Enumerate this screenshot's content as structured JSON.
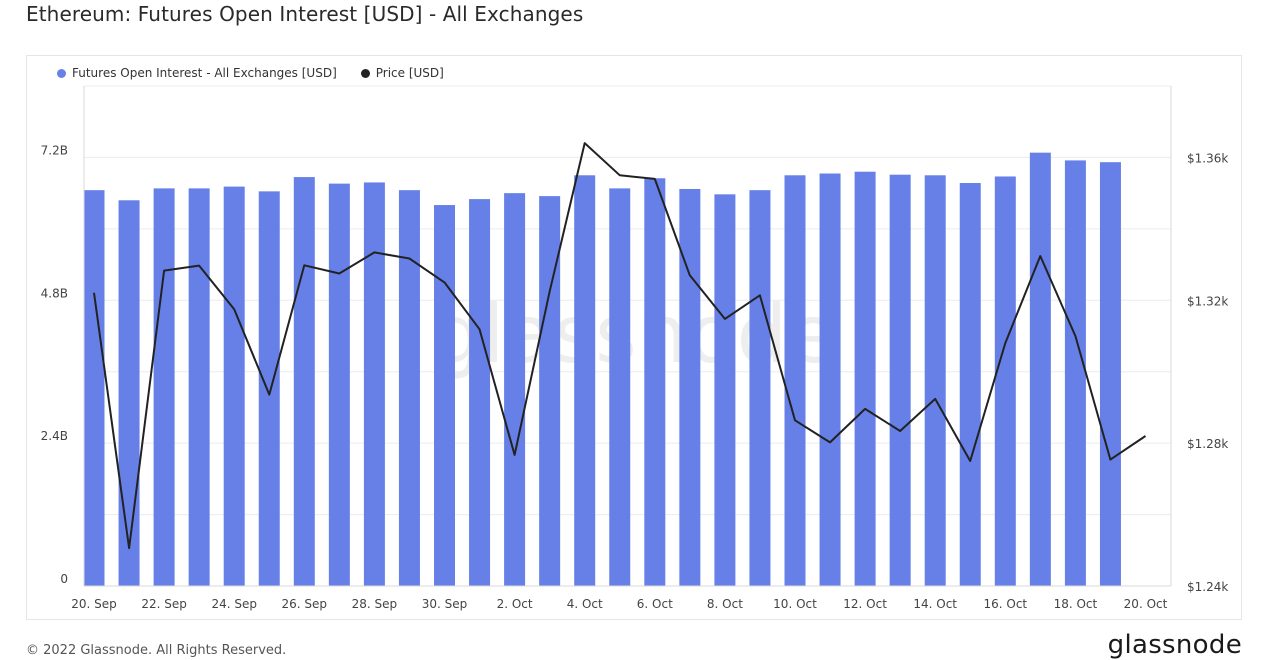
{
  "title": "Ethereum: Futures Open Interest [USD] - All Exchanges",
  "footer": "© 2022 Glassnode. All Rights Reserved.",
  "brand": "glassnode",
  "watermark": "glassnode",
  "legend": [
    {
      "label": "Futures Open Interest - All Exchanges [USD]",
      "color": "#6680e8"
    },
    {
      "label": "Price [USD]",
      "color": "#222222"
    }
  ],
  "chart_data": {
    "type": "bar",
    "title": "Ethereum: Futures Open Interest [USD] - All Exchanges",
    "grid": true,
    "legend_position": "top-left",
    "x_tick_labels": [
      "20. Sep",
      "22. Sep",
      "24. Sep",
      "26. Sep",
      "28. Sep",
      "30. Sep",
      "2. Oct",
      "4. Oct",
      "6. Oct",
      "8. Oct",
      "10. Oct",
      "12. Oct",
      "14. Oct",
      "16. Oct",
      "18. Oct",
      "20. Oct"
    ],
    "y_left": {
      "ticks": [
        "0",
        "2.4B",
        "4.8B",
        "7.2B"
      ],
      "tick_values": [
        0,
        2.4,
        4.8,
        7.2
      ],
      "ylim": [
        0,
        8.4
      ],
      "unit": "B"
    },
    "y_right": {
      "ticks": [
        "$1.24k",
        "$1.28k",
        "$1.32k",
        "$1.36k"
      ],
      "tick_values": [
        1.24,
        1.28,
        1.32,
        1.36
      ],
      "ylim": [
        1.24,
        1.38
      ],
      "unit": "k"
    },
    "dates": [
      "20. Sep",
      "21. Sep",
      "22. Sep",
      "23. Sep",
      "24. Sep",
      "25. Sep",
      "26. Sep",
      "27. Sep",
      "28. Sep",
      "29. Sep",
      "30. Sep",
      "1. Oct",
      "2. Oct",
      "3. Oct",
      "4. Oct",
      "5. Oct",
      "6. Oct",
      "7. Oct",
      "8. Oct",
      "9. Oct",
      "10. Oct",
      "11. Oct",
      "12. Oct",
      "13. Oct",
      "14. Oct",
      "15. Oct",
      "16. Oct",
      "17. Oct",
      "18. Oct",
      "19. Oct",
      "20. Oct"
    ],
    "series": [
      {
        "name": "Futures Open Interest - All Exchanges [USD]",
        "type": "bar",
        "axis": "left",
        "color": "#6680e8",
        "values": [
          6.65,
          6.48,
          6.68,
          6.68,
          6.71,
          6.63,
          6.87,
          6.76,
          6.78,
          6.65,
          6.4,
          6.5,
          6.6,
          6.55,
          6.9,
          6.68,
          6.85,
          6.67,
          6.58,
          6.65,
          6.9,
          6.93,
          6.96,
          6.91,
          6.9,
          6.77,
          6.88,
          7.28,
          7.15,
          7.12,
          null
        ]
      },
      {
        "name": "Price [USD]",
        "type": "line",
        "axis": "right",
        "color": "#222222",
        "values": [
          1.3221,
          1.2506,
          1.3283,
          1.3297,
          1.3175,
          1.2936,
          1.3298,
          1.3275,
          1.3334,
          1.3317,
          1.325,
          1.3119,
          1.2767,
          1.3224,
          1.364,
          1.355,
          1.354,
          1.327,
          1.3148,
          1.3214,
          1.2864,
          1.2802,
          1.2896,
          1.2834,
          1.2924,
          1.275,
          1.308,
          1.3324,
          1.31,
          1.2754,
          1.282
        ]
      }
    ]
  }
}
